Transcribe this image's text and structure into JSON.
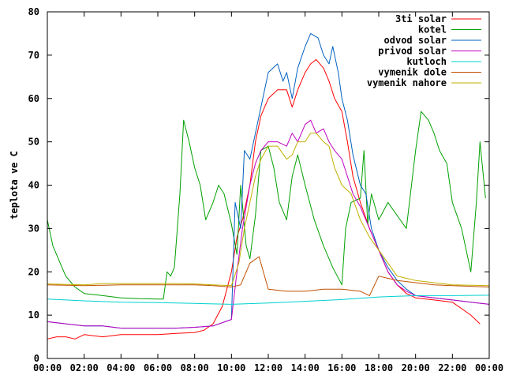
{
  "chart_data": {
    "type": "line",
    "ylabel": "teplota ve C",
    "xlabel": "",
    "title": "",
    "xlim": [
      0,
      24
    ],
    "ylim": [
      0,
      80
    ],
    "x_ticks": [
      "00:00",
      "02:00",
      "04:00",
      "06:00",
      "08:00",
      "10:00",
      "12:00",
      "14:00",
      "16:00",
      "18:00",
      "20:00",
      "22:00",
      "00:00"
    ],
    "y_ticks": [
      0,
      10,
      20,
      30,
      40,
      50,
      60,
      70,
      80
    ],
    "grid": false,
    "legend_position": "top-right",
    "series": [
      {
        "name": "3ti solar",
        "color": "#ff0000",
        "points": [
          [
            0,
            4.5
          ],
          [
            0.5,
            5
          ],
          [
            1,
            5
          ],
          [
            1.5,
            4.5
          ],
          [
            2,
            5.5
          ],
          [
            3,
            5
          ],
          [
            4,
            5.5
          ],
          [
            5,
            5.5
          ],
          [
            6,
            5.5
          ],
          [
            7,
            5.8
          ],
          [
            8,
            6
          ],
          [
            8.5,
            6.5
          ],
          [
            9,
            8
          ],
          [
            9.5,
            12
          ],
          [
            10,
            20
          ],
          [
            10.3,
            28
          ],
          [
            10.6,
            32
          ],
          [
            11,
            40
          ],
          [
            11.3,
            50
          ],
          [
            11.6,
            56
          ],
          [
            12,
            60
          ],
          [
            12.5,
            62
          ],
          [
            13,
            62
          ],
          [
            13.3,
            58
          ],
          [
            13.6,
            62
          ],
          [
            14,
            66
          ],
          [
            14.3,
            68
          ],
          [
            14.6,
            69
          ],
          [
            15,
            67
          ],
          [
            15.3,
            64
          ],
          [
            15.6,
            60
          ],
          [
            16,
            57
          ],
          [
            16.3,
            50
          ],
          [
            16.6,
            42
          ],
          [
            17,
            36
          ],
          [
            17.5,
            30
          ],
          [
            18,
            25
          ],
          [
            18.5,
            20
          ],
          [
            19,
            17
          ],
          [
            19.5,
            15
          ],
          [
            20,
            14
          ],
          [
            21,
            13.5
          ],
          [
            22,
            13
          ],
          [
            23,
            10
          ],
          [
            23.5,
            8
          ]
        ]
      },
      {
        "name": "kotel",
        "color": "#00a000",
        "points": [
          [
            0,
            32
          ],
          [
            0.3,
            26
          ],
          [
            0.7,
            22
          ],
          [
            1,
            19
          ],
          [
            1.5,
            16.5
          ],
          [
            2,
            15
          ],
          [
            3,
            14.5
          ],
          [
            4,
            14
          ],
          [
            5,
            13.8
          ],
          [
            6,
            13.7
          ],
          [
            6.3,
            13.7
          ],
          [
            6.5,
            20
          ],
          [
            6.7,
            19
          ],
          [
            6.9,
            21
          ],
          [
            7.2,
            38
          ],
          [
            7.4,
            55
          ],
          [
            7.7,
            50
          ],
          [
            8,
            44
          ],
          [
            8.3,
            40
          ],
          [
            8.6,
            32
          ],
          [
            9,
            36
          ],
          [
            9.3,
            40
          ],
          [
            9.6,
            38
          ],
          [
            10,
            31
          ],
          [
            10.3,
            24
          ],
          [
            10.5,
            40
          ],
          [
            10.8,
            26
          ],
          [
            11,
            23
          ],
          [
            11.3,
            33
          ],
          [
            11.6,
            48
          ],
          [
            12,
            49
          ],
          [
            12.3,
            44
          ],
          [
            12.6,
            36
          ],
          [
            13,
            32
          ],
          [
            13.3,
            42
          ],
          [
            13.6,
            47
          ],
          [
            14,
            40
          ],
          [
            14.5,
            32
          ],
          [
            15,
            26
          ],
          [
            15.5,
            21
          ],
          [
            16,
            17
          ],
          [
            16.2,
            30
          ],
          [
            16.5,
            36
          ],
          [
            17,
            37
          ],
          [
            17.2,
            48
          ],
          [
            17.4,
            31
          ],
          [
            17.6,
            38
          ],
          [
            18,
            32
          ],
          [
            18.5,
            36
          ],
          [
            19,
            33
          ],
          [
            19.5,
            30
          ],
          [
            20,
            48
          ],
          [
            20.3,
            57
          ],
          [
            20.7,
            55
          ],
          [
            21,
            52
          ],
          [
            21.3,
            48
          ],
          [
            21.7,
            45
          ],
          [
            22,
            36
          ],
          [
            22.5,
            30
          ],
          [
            23,
            20
          ],
          [
            23.3,
            36
          ],
          [
            23.5,
            50
          ],
          [
            23.8,
            37
          ]
        ]
      },
      {
        "name": "odvod solar",
        "color": "#0060c0",
        "points": [
          [
            0,
            8.5
          ],
          [
            1,
            8
          ],
          [
            2,
            7.5
          ],
          [
            3,
            7.5
          ],
          [
            4,
            7
          ],
          [
            5,
            7
          ],
          [
            6,
            7
          ],
          [
            7,
            7
          ],
          [
            8,
            7.2
          ],
          [
            9,
            7.5
          ],
          [
            10,
            9
          ],
          [
            10.2,
            36
          ],
          [
            10.5,
            30
          ],
          [
            10.7,
            48
          ],
          [
            11,
            46
          ],
          [
            11.3,
            52
          ],
          [
            11.6,
            58
          ],
          [
            12,
            66
          ],
          [
            12.5,
            68
          ],
          [
            12.8,
            64
          ],
          [
            13,
            66
          ],
          [
            13.3,
            60
          ],
          [
            13.6,
            67
          ],
          [
            14,
            72
          ],
          [
            14.3,
            75
          ],
          [
            14.7,
            74
          ],
          [
            15,
            70
          ],
          [
            15.3,
            68
          ],
          [
            15.5,
            72
          ],
          [
            15.8,
            66
          ],
          [
            16,
            60
          ],
          [
            16.3,
            55
          ],
          [
            16.6,
            47
          ],
          [
            17,
            40
          ],
          [
            17.3,
            38
          ],
          [
            17.6,
            30
          ],
          [
            18,
            25
          ],
          [
            18.5,
            21
          ],
          [
            19,
            18
          ],
          [
            19.5,
            16
          ],
          [
            20,
            14.5
          ],
          [
            21,
            14
          ],
          [
            22,
            13.5
          ],
          [
            23,
            13
          ],
          [
            24,
            12.5
          ]
        ]
      },
      {
        "name": "privod solar",
        "color": "#c000c0",
        "points": [
          [
            0,
            8.5
          ],
          [
            1,
            8
          ],
          [
            2,
            7.5
          ],
          [
            3,
            7.5
          ],
          [
            4,
            7
          ],
          [
            5,
            7
          ],
          [
            6,
            7
          ],
          [
            7,
            7
          ],
          [
            8,
            7.2
          ],
          [
            9,
            7.5
          ],
          [
            10,
            9
          ],
          [
            10.3,
            20
          ],
          [
            10.6,
            30
          ],
          [
            11,
            40
          ],
          [
            11.3,
            45
          ],
          [
            11.6,
            48
          ],
          [
            12,
            50
          ],
          [
            12.5,
            50
          ],
          [
            13,
            49
          ],
          [
            13.3,
            52
          ],
          [
            13.6,
            50
          ],
          [
            14,
            54
          ],
          [
            14.3,
            55
          ],
          [
            14.6,
            52
          ],
          [
            15,
            53
          ],
          [
            15.3,
            50
          ],
          [
            15.6,
            48
          ],
          [
            16,
            46
          ],
          [
            16.3,
            42
          ],
          [
            16.6,
            38
          ],
          [
            17,
            35
          ],
          [
            17.5,
            30
          ],
          [
            18,
            25
          ],
          [
            18.5,
            20
          ],
          [
            19,
            17
          ],
          [
            19.5,
            15.5
          ],
          [
            20,
            14.5
          ],
          [
            21,
            14
          ],
          [
            22,
            13.5
          ],
          [
            23,
            13
          ],
          [
            24,
            12.5
          ]
        ]
      },
      {
        "name": "kutloch",
        "color": "#00d0d0",
        "points": [
          [
            0,
            13.7
          ],
          [
            2,
            13.3
          ],
          [
            4,
            13
          ],
          [
            6,
            12.9
          ],
          [
            8,
            12.7
          ],
          [
            10,
            12.5
          ],
          [
            12,
            12.8
          ],
          [
            14,
            13.2
          ],
          [
            16,
            13.6
          ],
          [
            18,
            14.2
          ],
          [
            20,
            14.5
          ],
          [
            22,
            14.5
          ],
          [
            24,
            14.6
          ]
        ]
      },
      {
        "name": "vymenik dole",
        "color": "#c05000",
        "points": [
          [
            0,
            17
          ],
          [
            2,
            16.8
          ],
          [
            4,
            17
          ],
          [
            6,
            17
          ],
          [
            8,
            17
          ],
          [
            9,
            16.8
          ],
          [
            10,
            16.5
          ],
          [
            10.5,
            17
          ],
          [
            11,
            22
          ],
          [
            11.5,
            23.5
          ],
          [
            12,
            16
          ],
          [
            13,
            15.5
          ],
          [
            14,
            15.5
          ],
          [
            15,
            16
          ],
          [
            16,
            16
          ],
          [
            17,
            15.5
          ],
          [
            17.5,
            14.5
          ],
          [
            18,
            19
          ],
          [
            18.5,
            18.5
          ],
          [
            19,
            18
          ],
          [
            20,
            17.5
          ],
          [
            21,
            17
          ],
          [
            22,
            16.8
          ],
          [
            24,
            16.5
          ]
        ]
      },
      {
        "name": "vymenik nahore",
        "color": "#c0b000",
        "points": [
          [
            0,
            17.2
          ],
          [
            2,
            17
          ],
          [
            3,
            17.3
          ],
          [
            5,
            17.3
          ],
          [
            7,
            17.3
          ],
          [
            8,
            17.2
          ],
          [
            9,
            17
          ],
          [
            10,
            16.8
          ],
          [
            10.4,
            22
          ],
          [
            10.7,
            30
          ],
          [
            11,
            36
          ],
          [
            11.3,
            42
          ],
          [
            11.6,
            46
          ],
          [
            12,
            49
          ],
          [
            12.5,
            49
          ],
          [
            13,
            46
          ],
          [
            13.3,
            47
          ],
          [
            13.6,
            50
          ],
          [
            14,
            50
          ],
          [
            14.3,
            52
          ],
          [
            14.6,
            52
          ],
          [
            15,
            50
          ],
          [
            15.3,
            49
          ],
          [
            15.6,
            44
          ],
          [
            16,
            40
          ],
          [
            16.5,
            38
          ],
          [
            17,
            32
          ],
          [
            17.5,
            28
          ],
          [
            18,
            25
          ],
          [
            18.5,
            22
          ],
          [
            19,
            19
          ],
          [
            20,
            18
          ],
          [
            21,
            17.5
          ],
          [
            22,
            17
          ],
          [
            24,
            16.8
          ]
        ]
      }
    ]
  }
}
